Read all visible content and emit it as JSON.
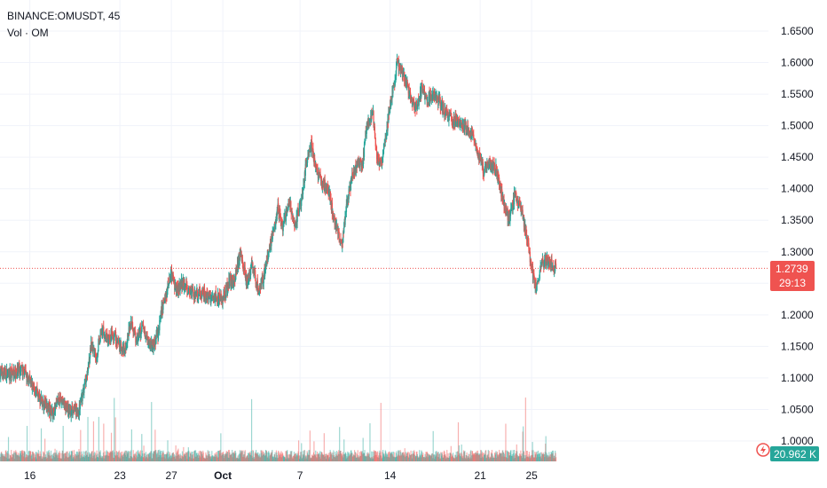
{
  "header": {
    "symbol_line": "BINANCE:OMUSDT, 45",
    "volume_line": "Vol · OM"
  },
  "colors": {
    "up": "#26a69a",
    "down": "#ef5350",
    "grid": "#f0f3fa",
    "price_line": "#ef5350",
    "volume_badge": "#26a69a"
  },
  "badges": {
    "last_price": "1.2739",
    "countdown": "29:13",
    "volume": "20.962 K"
  },
  "chart_data": {
    "type": "candlestick",
    "symbol": "BINANCE:OMUSDT",
    "interval": "45",
    "y_ticks": [
      "1.0000",
      "1.0500",
      "1.1000",
      "1.1500",
      "1.2000",
      "1.2500",
      "1.3000",
      "1.3500",
      "1.4000",
      "1.4500",
      "1.5000",
      "1.5500",
      "1.6000",
      "1.6500"
    ],
    "ylim": [
      0.99,
      1.668
    ],
    "x_ticks": [
      {
        "label": "16",
        "day": 16.0,
        "bold": false
      },
      {
        "label": "23",
        "day": 23.0,
        "bold": false
      },
      {
        "label": "27",
        "day": 27.0,
        "bold": false
      },
      {
        "label": "Oct",
        "day": 31.0,
        "bold": true
      },
      {
        "label": "7",
        "day": 37.0,
        "bold": false
      },
      {
        "label": "14",
        "day": 44.0,
        "bold": false
      },
      {
        "label": "21",
        "day": 51.0,
        "bold": false
      },
      {
        "label": "25",
        "day": 55.0,
        "bold": false
      }
    ],
    "last_price": 1.2739,
    "price_path": [
      [
        13.7,
        1.11
      ],
      [
        14.5,
        1.105
      ],
      [
        15.4,
        1.112
      ],
      [
        16.2,
        1.09
      ],
      [
        17.0,
        1.06
      ],
      [
        17.8,
        1.045
      ],
      [
        18.3,
        1.07
      ],
      [
        19.0,
        1.05
      ],
      [
        19.8,
        1.045
      ],
      [
        20.4,
        1.1
      ],
      [
        20.8,
        1.15
      ],
      [
        21.2,
        1.13
      ],
      [
        21.6,
        1.18
      ],
      [
        22.1,
        1.16
      ],
      [
        22.6,
        1.17
      ],
      [
        23.0,
        1.15
      ],
      [
        23.4,
        1.14
      ],
      [
        23.9,
        1.19
      ],
      [
        24.3,
        1.16
      ],
      [
        24.8,
        1.18
      ],
      [
        25.2,
        1.16
      ],
      [
        25.6,
        1.15
      ],
      [
        26.0,
        1.17
      ],
      [
        26.3,
        1.21
      ],
      [
        26.7,
        1.24
      ],
      [
        27.0,
        1.265
      ],
      [
        27.4,
        1.24
      ],
      [
        27.9,
        1.25
      ],
      [
        28.4,
        1.24
      ],
      [
        28.9,
        1.23
      ],
      [
        29.4,
        1.235
      ],
      [
        30.0,
        1.225
      ],
      [
        30.5,
        1.23
      ],
      [
        31.0,
        1.225
      ],
      [
        31.5,
        1.25
      ],
      [
        32.0,
        1.26
      ],
      [
        32.4,
        1.3
      ],
      [
        32.9,
        1.25
      ],
      [
        33.3,
        1.28
      ],
      [
        33.8,
        1.24
      ],
      [
        34.2,
        1.26
      ],
      [
        34.8,
        1.32
      ],
      [
        35.3,
        1.37
      ],
      [
        35.7,
        1.34
      ],
      [
        36.2,
        1.38
      ],
      [
        36.6,
        1.34
      ],
      [
        37.1,
        1.38
      ],
      [
        37.5,
        1.44
      ],
      [
        37.9,
        1.47
      ],
      [
        38.3,
        1.43
      ],
      [
        38.7,
        1.41
      ],
      [
        39.2,
        1.4
      ],
      [
        39.6,
        1.36
      ],
      [
        40.0,
        1.33
      ],
      [
        40.3,
        1.31
      ],
      [
        40.7,
        1.38
      ],
      [
        41.1,
        1.42
      ],
      [
        41.5,
        1.44
      ],
      [
        41.9,
        1.44
      ],
      [
        42.2,
        1.5
      ],
      [
        42.7,
        1.52
      ],
      [
        43.0,
        1.45
      ],
      [
        43.4,
        1.44
      ],
      [
        43.7,
        1.48
      ],
      [
        44.0,
        1.53
      ],
      [
        44.3,
        1.56
      ],
      [
        44.6,
        1.6
      ],
      [
        45.0,
        1.58
      ],
      [
        45.3,
        1.57
      ],
      [
        45.7,
        1.54
      ],
      [
        46.1,
        1.53
      ],
      [
        46.5,
        1.56
      ],
      [
        46.9,
        1.54
      ],
      [
        47.3,
        1.55
      ],
      [
        47.8,
        1.54
      ],
      [
        48.3,
        1.52
      ],
      [
        48.8,
        1.51
      ],
      [
        49.3,
        1.505
      ],
      [
        49.8,
        1.5
      ],
      [
        50.3,
        1.49
      ],
      [
        50.8,
        1.46
      ],
      [
        51.3,
        1.43
      ],
      [
        51.8,
        1.44
      ],
      [
        52.3,
        1.43
      ],
      [
        52.8,
        1.38
      ],
      [
        53.3,
        1.35
      ],
      [
        53.7,
        1.39
      ],
      [
        54.2,
        1.37
      ],
      [
        54.6,
        1.33
      ],
      [
        55.0,
        1.28
      ],
      [
        55.4,
        1.24
      ],
      [
        55.8,
        1.28
      ],
      [
        56.3,
        1.29
      ],
      [
        56.9,
        1.274
      ]
    ]
  }
}
